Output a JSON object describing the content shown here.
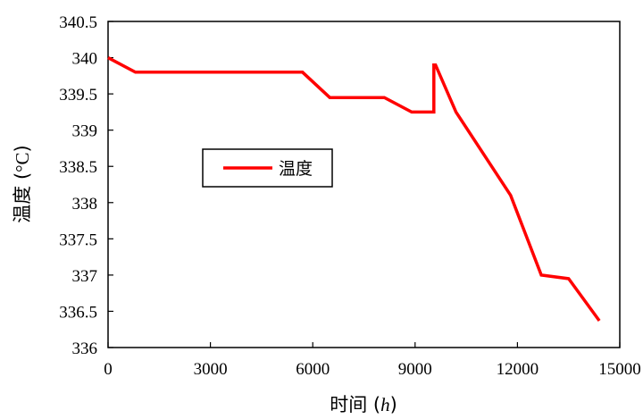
{
  "chart_data": {
    "type": "line",
    "xlabel": {
      "prefix": "时间 (",
      "italic": "h",
      "suffix": ")"
    },
    "ylabel": {
      "prefix": "温度 (",
      "unit": "°C",
      "suffix": ")"
    },
    "xlim": [
      0,
      15000
    ],
    "ylim": [
      336,
      340.5
    ],
    "xticks": [
      0,
      3000,
      6000,
      9000,
      12000,
      15000
    ],
    "yticks": [
      336,
      336.5,
      337,
      337.5,
      338,
      338.5,
      339,
      339.5,
      340,
      340.5
    ],
    "xtick_labels": [
      "0",
      "3000",
      "6000",
      "9000",
      "12000",
      "15000"
    ],
    "ytick_labels": [
      "336",
      "336.5",
      "337",
      "337.5",
      "338",
      "338.5",
      "339",
      "339.5",
      "340",
      "340.5"
    ],
    "grid": false,
    "legend": {
      "position": "center-left",
      "entries": [
        "温度"
      ]
    },
    "series": [
      {
        "name": "温度",
        "color": "#ff0000",
        "x": [
          0,
          800,
          5700,
          6500,
          8100,
          8900,
          9550,
          9550,
          9600,
          10200,
          11800,
          12700,
          13500,
          14400
        ],
        "y": [
          340.0,
          339.8,
          339.8,
          339.45,
          339.45,
          339.25,
          339.25,
          339.9,
          339.9,
          339.25,
          338.1,
          337.0,
          336.95,
          336.37
        ]
      }
    ]
  }
}
